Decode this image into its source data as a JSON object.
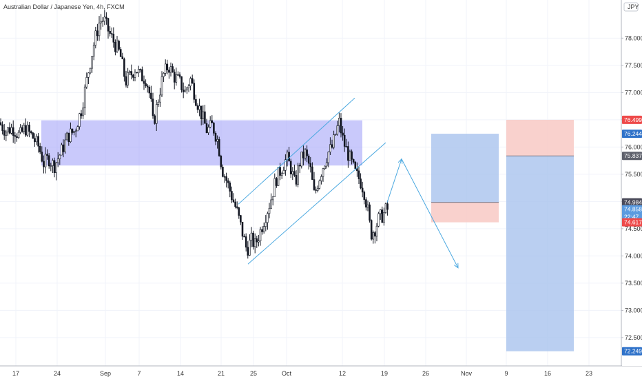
{
  "chart_data": {
    "type": "candlestick",
    "title": "Australian Dollar / Japanese Yen, 4h, FXCM",
    "currency_label": "JPY",
    "ylim": [
      71.98,
      78.7
    ],
    "y_ticks": [
      72.5,
      73.0,
      73.5,
      74.0,
      74.5,
      75.0,
      75.5,
      76.0,
      76.5,
      77.0,
      77.5,
      78.0
    ],
    "y_tick_labels": [
      "72.500",
      "73.000",
      "73.500",
      "74.000",
      "74.500",
      "75.000",
      "75.500",
      "76.000",
      "76.500",
      "77.000",
      "77.500",
      "78.000"
    ],
    "x_tick_labels": [
      "17",
      "24",
      "Sep",
      "7",
      "14",
      "21",
      "25",
      "Oct",
      "12",
      "19",
      "26",
      "Nov",
      "9",
      "16",
      "23"
    ],
    "grid": true,
    "colors": {
      "up": "#ffffff",
      "down": "#131722",
      "zone": "#9d9df7",
      "arrow": "#4aa8e0",
      "target_fill": "#a9c3ee",
      "stop_fill": "#f8c9c4",
      "tag_red": "#ee4a4a",
      "tag_blue": "#2f72c9",
      "tag_lightblue": "#5b9be0",
      "tag_dark": "#4b4b5a",
      "tag_gray": "#5d606b"
    },
    "path_points": [
      {
        "x": 0,
        "y": 76.45
      },
      {
        "x": 10,
        "y": 76.3
      },
      {
        "x": 20,
        "y": 76.35
      },
      {
        "x": 30,
        "y": 76.2
      },
      {
        "x": 38,
        "y": 76.35
      },
      {
        "x": 48,
        "y": 76.2
      },
      {
        "x": 58,
        "y": 76.0
      },
      {
        "x": 65,
        "y": 75.7
      },
      {
        "x": 72,
        "y": 75.8
      },
      {
        "x": 80,
        "y": 75.65
      },
      {
        "x": 90,
        "y": 75.9
      },
      {
        "x": 100,
        "y": 76.2
      },
      {
        "x": 110,
        "y": 76.3
      },
      {
        "x": 120,
        "y": 76.7
      },
      {
        "x": 130,
        "y": 77.4
      },
      {
        "x": 138,
        "y": 77.9
      },
      {
        "x": 146,
        "y": 78.3
      },
      {
        "x": 152,
        "y": 78.35
      },
      {
        "x": 160,
        "y": 78.1
      },
      {
        "x": 168,
        "y": 77.9
      },
      {
        "x": 176,
        "y": 77.7
      },
      {
        "x": 184,
        "y": 77.2
      },
      {
        "x": 190,
        "y": 77.3
      },
      {
        "x": 198,
        "y": 77.45
      },
      {
        "x": 206,
        "y": 77.3
      },
      {
        "x": 214,
        "y": 77.25
      },
      {
        "x": 220,
        "y": 76.9
      },
      {
        "x": 224,
        "y": 76.4
      },
      {
        "x": 230,
        "y": 76.8
      },
      {
        "x": 238,
        "y": 77.3
      },
      {
        "x": 246,
        "y": 77.5
      },
      {
        "x": 254,
        "y": 77.3
      },
      {
        "x": 262,
        "y": 77.2
      },
      {
        "x": 270,
        "y": 77.0
      },
      {
        "x": 278,
        "y": 77.25
      },
      {
        "x": 286,
        "y": 76.9
      },
      {
        "x": 294,
        "y": 76.6
      },
      {
        "x": 302,
        "y": 76.3
      },
      {
        "x": 310,
        "y": 76.4
      },
      {
        "x": 318,
        "y": 76.1
      },
      {
        "x": 324,
        "y": 75.6
      },
      {
        "x": 330,
        "y": 75.4
      },
      {
        "x": 338,
        "y": 75.1
      },
      {
        "x": 346,
        "y": 74.8
      },
      {
        "x": 354,
        "y": 74.4
      },
      {
        "x": 360,
        "y": 74.1
      },
      {
        "x": 366,
        "y": 74.3
      },
      {
        "x": 372,
        "y": 74.2
      },
      {
        "x": 378,
        "y": 74.4
      },
      {
        "x": 386,
        "y": 74.7
      },
      {
        "x": 394,
        "y": 75.0
      },
      {
        "x": 402,
        "y": 75.4
      },
      {
        "x": 410,
        "y": 75.6
      },
      {
        "x": 418,
        "y": 75.8
      },
      {
        "x": 424,
        "y": 75.6
      },
      {
        "x": 430,
        "y": 75.3
      },
      {
        "x": 436,
        "y": 75.7
      },
      {
        "x": 444,
        "y": 75.9
      },
      {
        "x": 452,
        "y": 75.6
      },
      {
        "x": 458,
        "y": 75.1
      },
      {
        "x": 464,
        "y": 75.4
      },
      {
        "x": 472,
        "y": 75.7
      },
      {
        "x": 478,
        "y": 75.9
      },
      {
        "x": 484,
        "y": 76.0
      },
      {
        "x": 490,
        "y": 76.3
      },
      {
        "x": 494,
        "y": 76.45
      },
      {
        "x": 500,
        "y": 76.1
      },
      {
        "x": 506,
        "y": 75.9
      },
      {
        "x": 512,
        "y": 75.7
      },
      {
        "x": 518,
        "y": 75.5
      },
      {
        "x": 524,
        "y": 75.4
      },
      {
        "x": 530,
        "y": 75.2
      },
      {
        "x": 536,
        "y": 74.8
      },
      {
        "x": 540,
        "y": 74.4
      },
      {
        "x": 546,
        "y": 74.5
      },
      {
        "x": 552,
        "y": 74.7
      },
      {
        "x": 558,
        "y": 74.75
      },
      {
        "x": 562,
        "y": 74.85
      }
    ],
    "annotations": {
      "supply_zone": {
        "x_from": 60,
        "x_to": 526,
        "y_top": 76.49,
        "y_bottom": 75.66
      },
      "channel_upper": [
        {
          "x": 346,
          "y": 74.95
        },
        {
          "x": 515,
          "y": 76.9
        }
      ],
      "channel_lower": [
        {
          "x": 360,
          "y": 73.85
        },
        {
          "x": 560,
          "y": 76.08
        }
      ],
      "projection_arrow": [
        {
          "x": 562,
          "y": 74.98
        },
        {
          "x": 583,
          "y": 75.78
        },
        {
          "x": 665,
          "y": 73.78
        }
      ],
      "position_1": {
        "x_from": 626,
        "x_to": 724,
        "target": 76.244,
        "entry": 74.984,
        "stop": 74.617
      },
      "position_2": {
        "x_from": 735,
        "x_to": 833,
        "stop": 76.499,
        "entry": 75.837,
        "target": 72.249
      }
    },
    "price_tags": [
      {
        "value": 76.499,
        "label": "76.499",
        "color": "#ee4a4a"
      },
      {
        "value": 76.244,
        "label": "76.244",
        "color": "#2f72c9"
      },
      {
        "value": 75.837,
        "label": "75.837",
        "color": "#5d606b"
      },
      {
        "value": 74.984,
        "label": "74.984",
        "color": "#4b4b5a"
      },
      {
        "value": 74.858,
        "label": "74.858",
        "color": "#5b9be0"
      },
      {
        "value": 74.72,
        "label": "22:47",
        "color": "#5b9be0"
      },
      {
        "value": 74.617,
        "label": "74.617",
        "color": "#ee4a4a"
      },
      {
        "value": 72.249,
        "label": "72.249",
        "color": "#2f72c9"
      }
    ]
  }
}
